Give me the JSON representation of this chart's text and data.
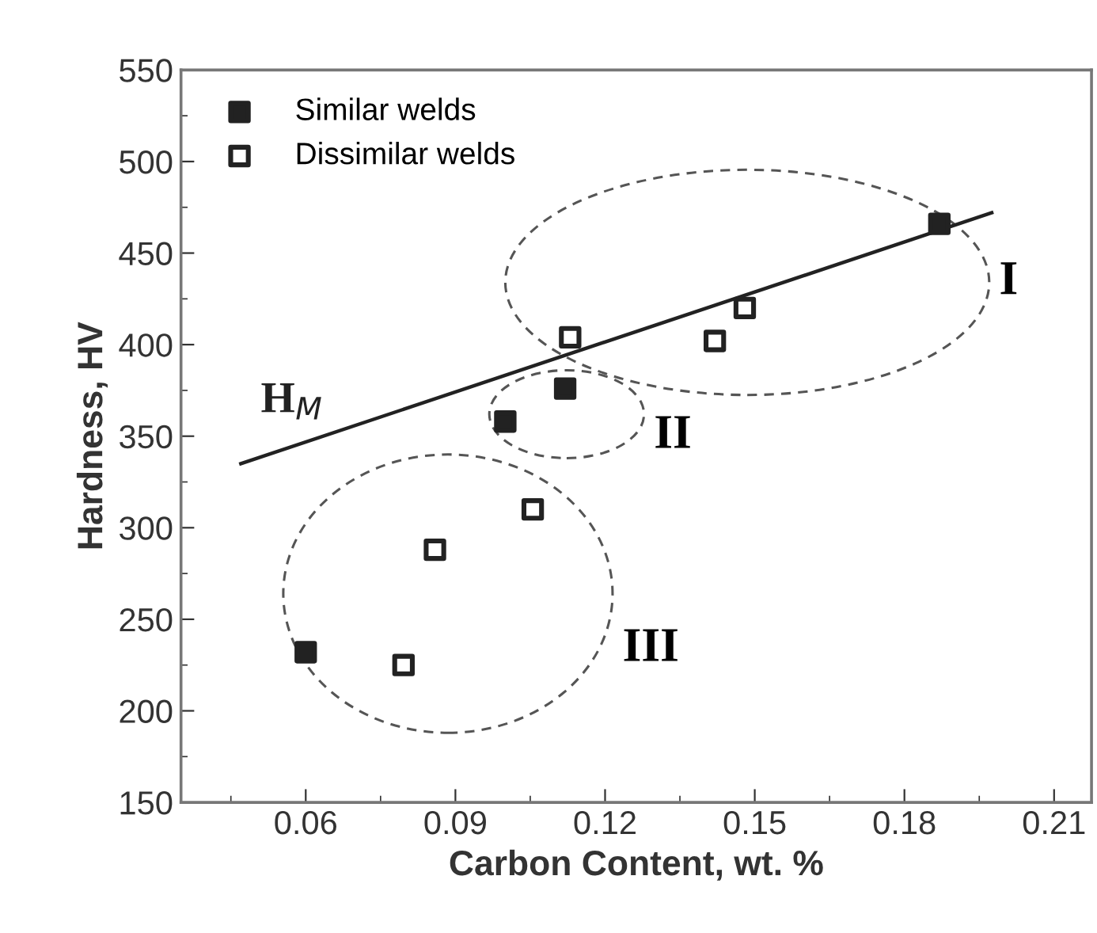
{
  "chart_data": {
    "type": "scatter",
    "xlabel": "Carbon Content, wt. %",
    "ylabel": "Hardness, HV",
    "xlim": [
      0.035,
      0.2175
    ],
    "ylim": [
      150,
      550
    ],
    "xticks": [
      0.06,
      0.09,
      0.12,
      0.15,
      0.18,
      0.21
    ],
    "yticks": [
      150,
      200,
      250,
      300,
      350,
      400,
      450,
      500,
      550
    ],
    "grid": false,
    "legend": "top left",
    "marker": "square",
    "series": [
      {
        "name": "Similar welds",
        "color": "#222222",
        "x": [
          0.06,
          0.1,
          0.112,
          0.187
        ],
        "values": [
          232,
          358,
          376,
          466
        ]
      },
      {
        "name": "Dissimilar welds",
        "color": "#222222",
        "x": [
          0.0796,
          0.0859,
          0.1055,
          0.113,
          0.142,
          0.148
        ],
        "values": [
          225,
          288,
          310,
          404,
          402,
          420
        ]
      },
      {
        "name": "H$_{M}$",
        "type": "line",
        "marker": "none",
        "color": "#222222",
        "x": [
          0.047,
          0.1975
        ],
        "values": [
          335,
          472
        ]
      }
    ],
    "annotations": [
      "I",
      "II",
      "III"
    ]
  }
}
